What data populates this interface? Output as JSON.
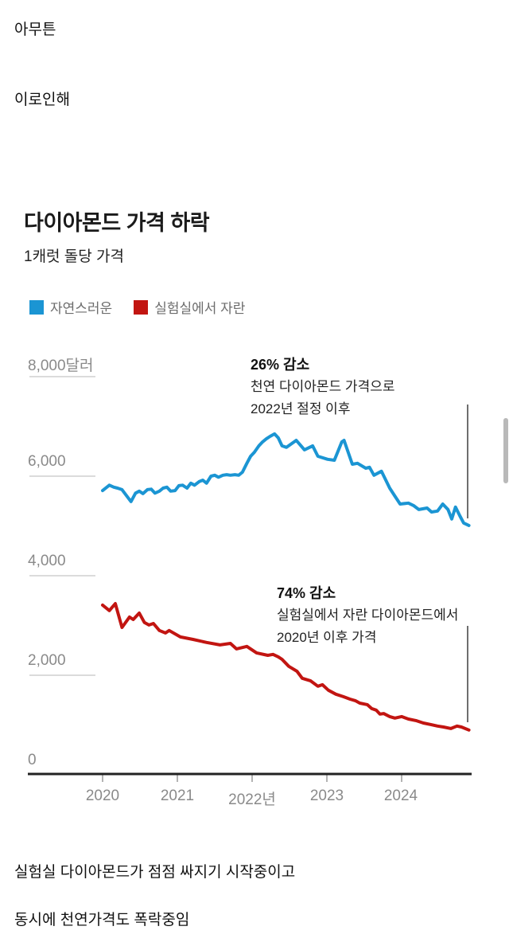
{
  "page": {
    "top_texts": [
      "아무튼",
      "이로인해"
    ],
    "bottom_texts": [
      "실험실 다이아몬드가 점점 싸지기 시작중이고",
      "동시에 천연가격도 폭락중임"
    ]
  },
  "chart_data": {
    "type": "line",
    "title": "다이아몬드 가격 하락",
    "subtitle": "1캐럿 돌당 가격",
    "xlabel": "",
    "ylabel": "달러",
    "xlim": [
      2020,
      2025
    ],
    "ylim": [
      0,
      8000
    ],
    "grid": "left-stub-ticks-only",
    "legend_position": "top-left",
    "legend": [
      {
        "label": "자연스러운",
        "color": "#1b95d3"
      },
      {
        "label": "실험실에서 자란",
        "color": "#c21511"
      }
    ],
    "x_ticks": [
      2020,
      2021,
      2022,
      2023,
      2024
    ],
    "x_tick_labels": [
      "2020",
      "2021",
      "2022년",
      "2023",
      "2024"
    ],
    "y_ticks": [
      0,
      2000,
      4000,
      6000,
      8000
    ],
    "y_tick_labels_display": [
      "8,000달러",
      "6,000",
      "4,000",
      "2,000",
      "0"
    ],
    "annotations": [
      {
        "title": "26% 감소",
        "lines": [
          "천연 다이아몬드 가격으로",
          "2022년 절정 이후"
        ]
      },
      {
        "title": "74% 감소",
        "lines": [
          "실험실에서 자란 다이아몬드에서",
          "2020년 이후 가격"
        ]
      }
    ],
    "series": [
      {
        "name": "자연스러운",
        "color": "#1b95d3",
        "points": [
          [
            2020.0,
            5710
          ],
          [
            2020.09,
            5820
          ],
          [
            2020.15,
            5780
          ],
          [
            2020.2,
            5760
          ],
          [
            2020.26,
            5730
          ],
          [
            2020.38,
            5490
          ],
          [
            2020.44,
            5660
          ],
          [
            2020.49,
            5700
          ],
          [
            2020.54,
            5650
          ],
          [
            2020.6,
            5730
          ],
          [
            2020.65,
            5740
          ],
          [
            2020.7,
            5660
          ],
          [
            2020.76,
            5700
          ],
          [
            2020.81,
            5760
          ],
          [
            2020.86,
            5780
          ],
          [
            2020.91,
            5700
          ],
          [
            2020.97,
            5710
          ],
          [
            2021.02,
            5810
          ],
          [
            2021.07,
            5820
          ],
          [
            2021.13,
            5760
          ],
          [
            2021.18,
            5860
          ],
          [
            2021.23,
            5820
          ],
          [
            2021.29,
            5890
          ],
          [
            2021.34,
            5920
          ],
          [
            2021.39,
            5860
          ],
          [
            2021.45,
            6000
          ],
          [
            2021.5,
            6020
          ],
          [
            2021.55,
            5980
          ],
          [
            2021.61,
            6020
          ],
          [
            2021.66,
            6030
          ],
          [
            2021.71,
            6020
          ],
          [
            2021.77,
            6030
          ],
          [
            2021.82,
            6020
          ],
          [
            2021.87,
            6080
          ],
          [
            2021.93,
            6260
          ],
          [
            2021.98,
            6400
          ],
          [
            2022.03,
            6480
          ],
          [
            2022.09,
            6610
          ],
          [
            2022.14,
            6690
          ],
          [
            2022.19,
            6750
          ],
          [
            2022.24,
            6800
          ],
          [
            2022.3,
            6850
          ],
          [
            2022.35,
            6770
          ],
          [
            2022.4,
            6610
          ],
          [
            2022.46,
            6580
          ],
          [
            2022.59,
            6720
          ],
          [
            2022.7,
            6530
          ],
          [
            2022.81,
            6610
          ],
          [
            2022.88,
            6400
          ],
          [
            2023.01,
            6340
          ],
          [
            2023.1,
            6320
          ],
          [
            2023.2,
            6690
          ],
          [
            2023.23,
            6720
          ],
          [
            2023.34,
            6240
          ],
          [
            2023.41,
            6260
          ],
          [
            2023.52,
            6160
          ],
          [
            2023.57,
            6180
          ],
          [
            2023.63,
            6020
          ],
          [
            2023.73,
            6100
          ],
          [
            2023.84,
            5760
          ],
          [
            2023.91,
            5600
          ],
          [
            2023.98,
            5440
          ],
          [
            2024.09,
            5460
          ],
          [
            2024.16,
            5410
          ],
          [
            2024.23,
            5330
          ],
          [
            2024.34,
            5360
          ],
          [
            2024.4,
            5280
          ],
          [
            2024.48,
            5300
          ],
          [
            2024.55,
            5440
          ],
          [
            2024.62,
            5330
          ],
          [
            2024.67,
            5140
          ],
          [
            2024.72,
            5380
          ],
          [
            2024.78,
            5200
          ],
          [
            2024.83,
            5060
          ],
          [
            2024.9,
            5010
          ]
        ]
      },
      {
        "name": "실험실에서 자란",
        "color": "#c21511",
        "points": [
          [
            2020.0,
            3410
          ],
          [
            2020.09,
            3300
          ],
          [
            2020.17,
            3440
          ],
          [
            2020.26,
            2960
          ],
          [
            2020.36,
            3170
          ],
          [
            2020.41,
            3120
          ],
          [
            2020.49,
            3250
          ],
          [
            2020.56,
            3060
          ],
          [
            2020.62,
            3010
          ],
          [
            2020.68,
            3040
          ],
          [
            2020.76,
            2900
          ],
          [
            2020.84,
            2850
          ],
          [
            2020.89,
            2900
          ],
          [
            2021.04,
            2770
          ],
          [
            2021.21,
            2720
          ],
          [
            2021.39,
            2660
          ],
          [
            2021.57,
            2610
          ],
          [
            2021.71,
            2640
          ],
          [
            2021.79,
            2530
          ],
          [
            2021.93,
            2580
          ],
          [
            2022.06,
            2450
          ],
          [
            2022.21,
            2400
          ],
          [
            2022.28,
            2420
          ],
          [
            2022.35,
            2370
          ],
          [
            2022.4,
            2320
          ],
          [
            2022.49,
            2180
          ],
          [
            2022.6,
            2080
          ],
          [
            2022.67,
            1940
          ],
          [
            2022.78,
            1890
          ],
          [
            2022.88,
            1780
          ],
          [
            2022.94,
            1810
          ],
          [
            2023.02,
            1700
          ],
          [
            2023.12,
            1620
          ],
          [
            2023.22,
            1570
          ],
          [
            2023.31,
            1520
          ],
          [
            2023.38,
            1490
          ],
          [
            2023.44,
            1440
          ],
          [
            2023.54,
            1410
          ],
          [
            2023.6,
            1330
          ],
          [
            2023.66,
            1300
          ],
          [
            2023.71,
            1220
          ],
          [
            2023.76,
            1230
          ],
          [
            2023.84,
            1170
          ],
          [
            2023.91,
            1140
          ],
          [
            2024.0,
            1170
          ],
          [
            2024.09,
            1120
          ],
          [
            2024.19,
            1090
          ],
          [
            2024.29,
            1040
          ],
          [
            2024.39,
            1010
          ],
          [
            2024.48,
            980
          ],
          [
            2024.56,
            960
          ],
          [
            2024.66,
            930
          ],
          [
            2024.74,
            980
          ],
          [
            2024.8,
            960
          ],
          [
            2024.9,
            900
          ]
        ]
      }
    ]
  }
}
